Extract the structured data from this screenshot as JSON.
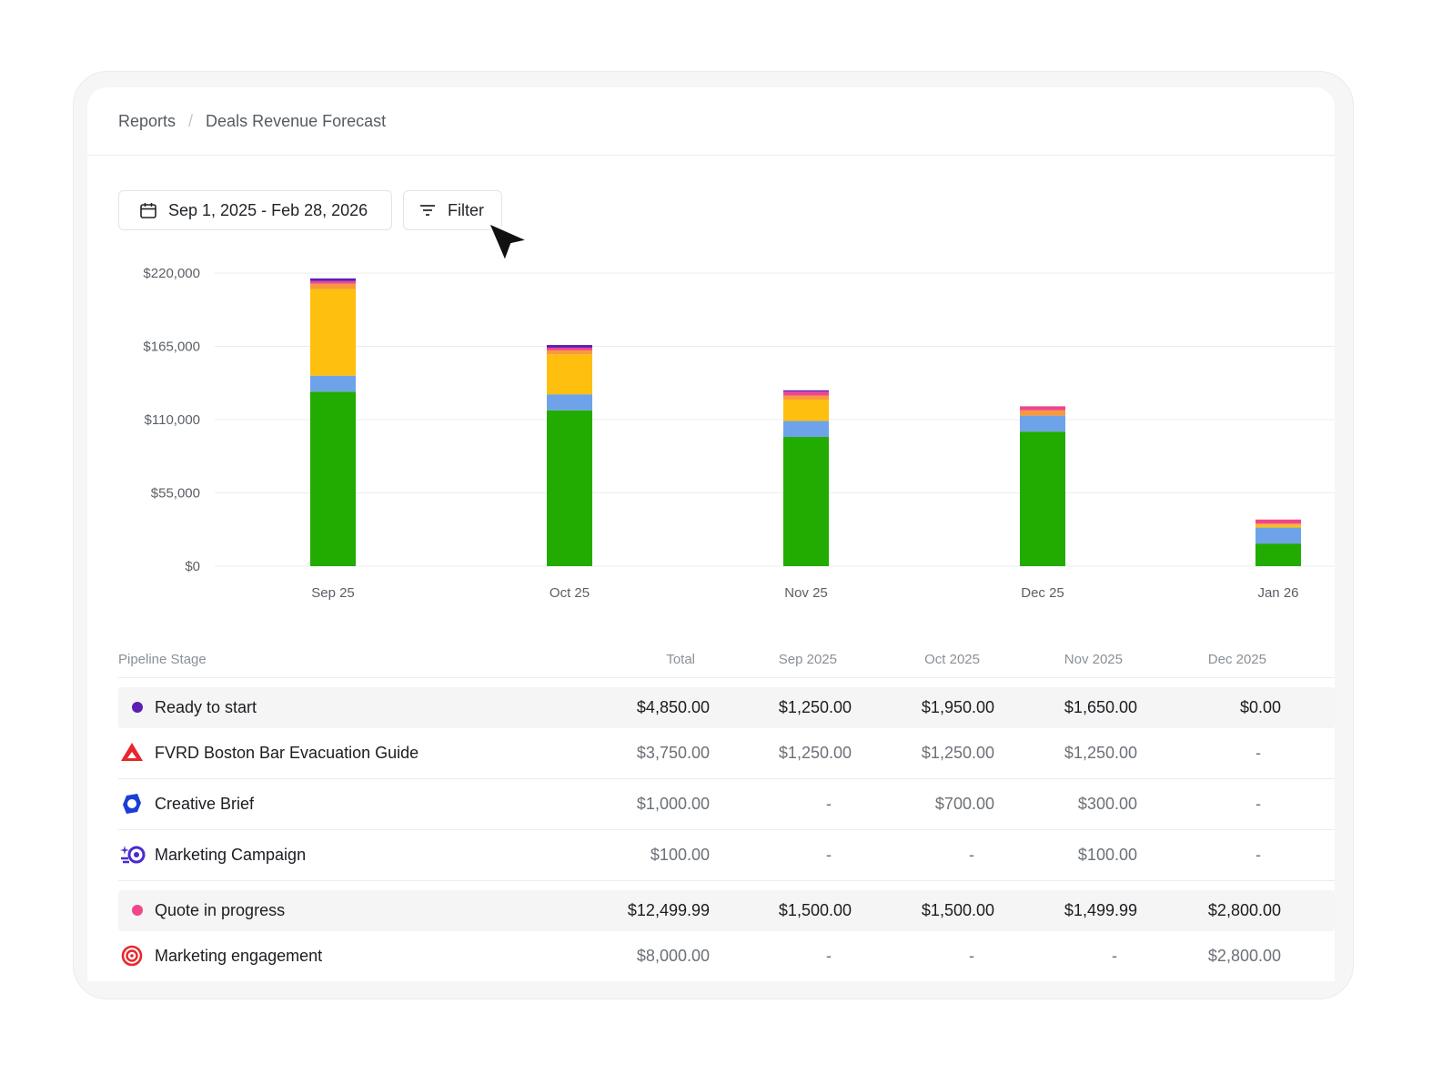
{
  "breadcrumb": {
    "parent": "Reports",
    "separator": "/",
    "current": "Deals Revenue Forecast"
  },
  "toolbar": {
    "date_range": "Sep 1, 2025 - Feb 28, 2026",
    "filter_label": "Filter"
  },
  "colors": {
    "ready_to_start": "#5b1fb5",
    "quote_in_progress": "#f0468c",
    "series": [
      "#22ab00",
      "#6ea3ea",
      "#ffbf0f",
      "#f79a3c",
      "#f0468c",
      "#5b1fb5"
    ]
  },
  "chart_data": {
    "type": "bar",
    "stacked": true,
    "categories": [
      "Sep 25",
      "Oct 25",
      "Nov 25",
      "Dec 25",
      "Jan 26"
    ],
    "y_tick_labels": [
      "$220,000",
      "$165,000",
      "$110,000",
      "$55,000",
      "$0"
    ],
    "y_ticks": [
      220000,
      165000,
      110000,
      55000,
      0
    ],
    "ylim": [
      0,
      220000
    ],
    "grid": true,
    "legend": "none",
    "series": [
      {
        "values": [
          131000,
          117000,
          97000,
          101000,
          17000
        ]
      },
      {
        "values": [
          12000,
          12000,
          12000,
          12000,
          12000
        ]
      },
      {
        "values": [
          65000,
          30000,
          16000,
          0,
          2000
        ]
      },
      {
        "values": [
          4000,
          3000,
          3000,
          4000,
          1000
        ]
      },
      {
        "values": [
          2000,
          2000,
          3000,
          3000,
          3000
        ]
      },
      {
        "values": [
          2000,
          2000,
          1000,
          0,
          0
        ]
      }
    ]
  },
  "table": {
    "headers": [
      "Pipeline Stage",
      "Total",
      "Sep 2025",
      "Oct 2025",
      "Nov 2025",
      "Dec 2025"
    ],
    "rows": [
      {
        "type": "group",
        "label": "Ready to start",
        "color": "#5b1fb5",
        "values": [
          "$4,850.00",
          "$1,250.00",
          "$1,950.00",
          "$1,650.00",
          "$0.00"
        ]
      },
      {
        "type": "item",
        "icon": "red-delta-logo-icon",
        "label": "FVRD Boston Bar Evacuation Guide",
        "values": [
          "$3,750.00",
          "$1,250.00",
          "$1,250.00",
          "$1,250.00",
          "-"
        ]
      },
      {
        "type": "item",
        "icon": "blue-hexagon-logo-icon",
        "label": "Creative Brief",
        "values": [
          "$1,000.00",
          "-",
          "$700.00",
          "$300.00",
          "-"
        ]
      },
      {
        "type": "item",
        "icon": "purple-sparkle-logo-icon",
        "label": "Marketing Campaign",
        "values": [
          "$100.00",
          "-",
          "-",
          "$100.00",
          "-"
        ]
      },
      {
        "type": "group",
        "label": "Quote in progress",
        "color": "#f0468c",
        "values": [
          "$12,499.99",
          "$1,500.00",
          "$1,500.00",
          "$1,499.99",
          "$2,800.00"
        ]
      },
      {
        "type": "item",
        "icon": "red-spiral-logo-icon",
        "label": "Marketing engagement",
        "values": [
          "$8,000.00",
          "-",
          "-",
          "-",
          "$2,800.00"
        ]
      }
    ]
  }
}
